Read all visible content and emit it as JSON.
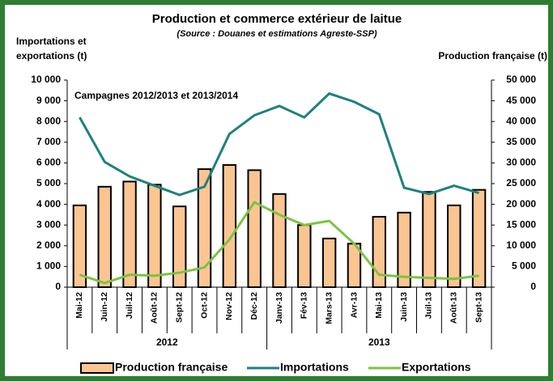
{
  "chart_data": {
    "type": "bar_line",
    "title": "Production et commerce extérieur de laitue",
    "subtitle": "(Source : Douanes et estimations Agreste-SSP)",
    "y_label": [
      "Importations et",
      "exportations (t)"
    ],
    "y2_label": "Production française (t)",
    "annotation": "Campagnes 2012/2013 et 2013/2014",
    "categories": [
      "Mai-12",
      "Juin-12",
      "Juil-12",
      "Août-12",
      "Sept-12",
      "Oct-12",
      "Nov-12",
      "Déc-12",
      "Janv-13",
      "Fév-13",
      "Mars-13",
      "Avr-13",
      "Mai-13",
      "Juin-13",
      "Juil-13",
      "Août-13",
      "Sept-13"
    ],
    "years": [
      "2012",
      "2013"
    ],
    "ylim": [
      0,
      10000
    ],
    "yticks": [
      0,
      {
        "value": 1000,
        "label": "1 000"
      },
      {
        "value": 2000,
        "label": "2 000"
      },
      {
        "value": 3000,
        "label": "3 000"
      },
      {
        "value": 4000,
        "label": "4 000"
      },
      {
        "value": 5000,
        "label": "5 000"
      },
      {
        "value": 6000,
        "label": "6 000"
      },
      {
        "value": 7000,
        "label": "7 000"
      },
      {
        "value": 8000,
        "label": "8 000"
      },
      {
        "value": 9000,
        "label": "9 000"
      },
      {
        "value": 10000,
        "label": "10 000"
      }
    ],
    "y2lim": [
      0,
      50000
    ],
    "y2ticks": [
      0,
      {
        "value": 5000,
        "label": "5 000"
      },
      {
        "value": 10000,
        "label": "10 000"
      },
      {
        "value": 15000,
        "label": "15 000"
      },
      {
        "value": 20000,
        "label": "20 000"
      },
      {
        "value": 25000,
        "label": "25 000"
      },
      {
        "value": 30000,
        "label": "30 000"
      },
      {
        "value": 35000,
        "label": "35 000"
      },
      {
        "value": 40000,
        "label": "40 000"
      },
      {
        "value": 45000,
        "label": "45 000"
      },
      {
        "value": 50000,
        "label": "50 000"
      }
    ],
    "series": [
      {
        "name": "Production française",
        "kind": "bar",
        "axis": "y2",
        "color": "#fbc592",
        "values": [
          19750,
          24250,
          25500,
          24750,
          19500,
          28500,
          29500,
          28250,
          22500,
          15000,
          11750,
          10500,
          17000,
          18000,
          23000,
          19750,
          23500
        ]
      },
      {
        "name": "Importations",
        "kind": "line",
        "color": "#1f8080",
        "values": [
          8200,
          6050,
          5350,
          4900,
          4450,
          4850,
          7400,
          8300,
          8750,
          8200,
          9350,
          8950,
          8350,
          4800,
          4500,
          4900,
          4550
        ]
      },
      {
        "name": "Exportations",
        "kind": "line",
        "color": "#7dc242",
        "values": [
          600,
          200,
          600,
          550,
          700,
          950,
          2300,
          4100,
          3500,
          3000,
          3200,
          2100,
          600,
          500,
          450,
          400,
          550
        ]
      }
    ]
  }
}
